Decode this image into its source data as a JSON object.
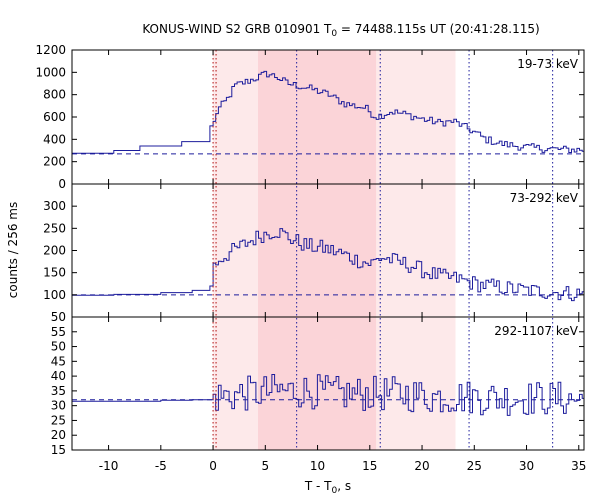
{
  "chart_data": {
    "type": "line",
    "title_parts": [
      "KONUS-WIND S2 GRB 010901 T",
      "0",
      " = 74488.115s UT (20:41:28.115)"
    ],
    "xlabel_parts": [
      "T - T",
      "0",
      ", s"
    ],
    "ylabel": "counts / 256 ms",
    "xlim": [
      -13.5,
      35.5
    ],
    "xticks": [
      -10,
      -5,
      0,
      5,
      10,
      15,
      20,
      25,
      30,
      35
    ],
    "reference_lines_x": [
      0,
      8,
      16,
      24.5,
      32.5
    ],
    "t0_line_x": 0,
    "shaded_regions": [
      {
        "x0": 0,
        "x1": 23.2,
        "color": "#fde9ea"
      },
      {
        "x0": 4.3,
        "x1": 15.6,
        "color": "#fbd4d8"
      }
    ],
    "colors": {
      "line": "#1c1c9c",
      "background_line": "#1c1c9c",
      "ref_lines": "#1c1c9c",
      "t0_line": "#b01010"
    },
    "panels": [
      {
        "label": "19-73 keV",
        "ylim": [
          0,
          1200
        ],
        "yticks": [
          0,
          200,
          400,
          600,
          800,
          1000,
          1200
        ],
        "background": 270,
        "pre_trigger_steps": [
          [
            -13.5,
            275
          ],
          [
            -9.5,
            300
          ],
          [
            -7,
            340
          ],
          [
            -3,
            380
          ],
          [
            -0.3,
            520
          ]
        ],
        "post_anchors": [
          [
            0,
            550
          ],
          [
            0.3,
            660
          ],
          [
            1.2,
            750
          ],
          [
            2,
            880
          ],
          [
            3.8,
            940
          ],
          [
            5,
            990
          ],
          [
            6,
            960
          ],
          [
            7,
            900
          ],
          [
            8,
            880
          ],
          [
            9,
            860
          ],
          [
            11,
            800
          ],
          [
            12.5,
            720
          ],
          [
            13.5,
            700
          ],
          [
            14.5,
            680
          ],
          [
            15.5,
            600
          ],
          [
            17,
            650
          ],
          [
            18.5,
            620
          ],
          [
            20,
            580
          ],
          [
            21.5,
            550
          ],
          [
            23,
            560
          ],
          [
            24,
            510
          ],
          [
            25,
            460
          ],
          [
            26,
            400
          ],
          [
            27.5,
            360
          ],
          [
            29,
            340
          ],
          [
            31,
            320
          ],
          [
            33,
            310
          ],
          [
            35.5,
            305
          ]
        ],
        "noise": 35
      },
      {
        "label": "73-292 keV",
        "ylim": [
          50,
          350
        ],
        "yticks": [
          50,
          100,
          150,
          200,
          250,
          300
        ],
        "background": 100,
        "pre_trigger_steps": [
          [
            -13.5,
            99
          ],
          [
            -9.5,
            101
          ],
          [
            -5,
            105
          ],
          [
            -2,
            110
          ],
          [
            -0.3,
            120
          ]
        ],
        "post_anchors": [
          [
            0,
            165
          ],
          [
            0.5,
            180
          ],
          [
            1.5,
            195
          ],
          [
            3,
            215
          ],
          [
            4.5,
            235
          ],
          [
            6,
            245
          ],
          [
            7.5,
            225
          ],
          [
            9,
            210
          ],
          [
            10.5,
            205
          ],
          [
            12,
            195
          ],
          [
            13.5,
            180
          ],
          [
            15,
            170
          ],
          [
            16,
            185
          ],
          [
            17.5,
            175
          ],
          [
            19,
            165
          ],
          [
            20.5,
            150
          ],
          [
            22,
            140
          ],
          [
            23.5,
            135
          ],
          [
            25,
            125
          ],
          [
            27,
            118
          ],
          [
            29,
            112
          ],
          [
            31,
            108
          ],
          [
            33,
            105
          ],
          [
            35.5,
            102
          ]
        ],
        "noise": 18
      },
      {
        "label": "292-1107 keV",
        "ylim": [
          15,
          60
        ],
        "yticks": [
          15,
          20,
          25,
          30,
          35,
          40,
          45,
          50,
          55
        ],
        "background": 32,
        "pre_trigger_steps": [
          [
            -13.5,
            31.5
          ],
          [
            -9,
            31.5
          ],
          [
            -5,
            31.8
          ],
          [
            -2,
            32
          ]
        ],
        "post_anchors": [
          [
            0,
            33
          ],
          [
            3,
            34
          ],
          [
            6,
            35
          ],
          [
            9,
            35
          ],
          [
            12,
            34
          ],
          [
            15,
            34
          ],
          [
            18,
            34
          ],
          [
            21,
            33
          ],
          [
            24,
            33
          ],
          [
            28,
            32.5
          ],
          [
            32,
            32.5
          ],
          [
            35.5,
            32
          ]
        ],
        "noise": 6
      }
    ]
  }
}
